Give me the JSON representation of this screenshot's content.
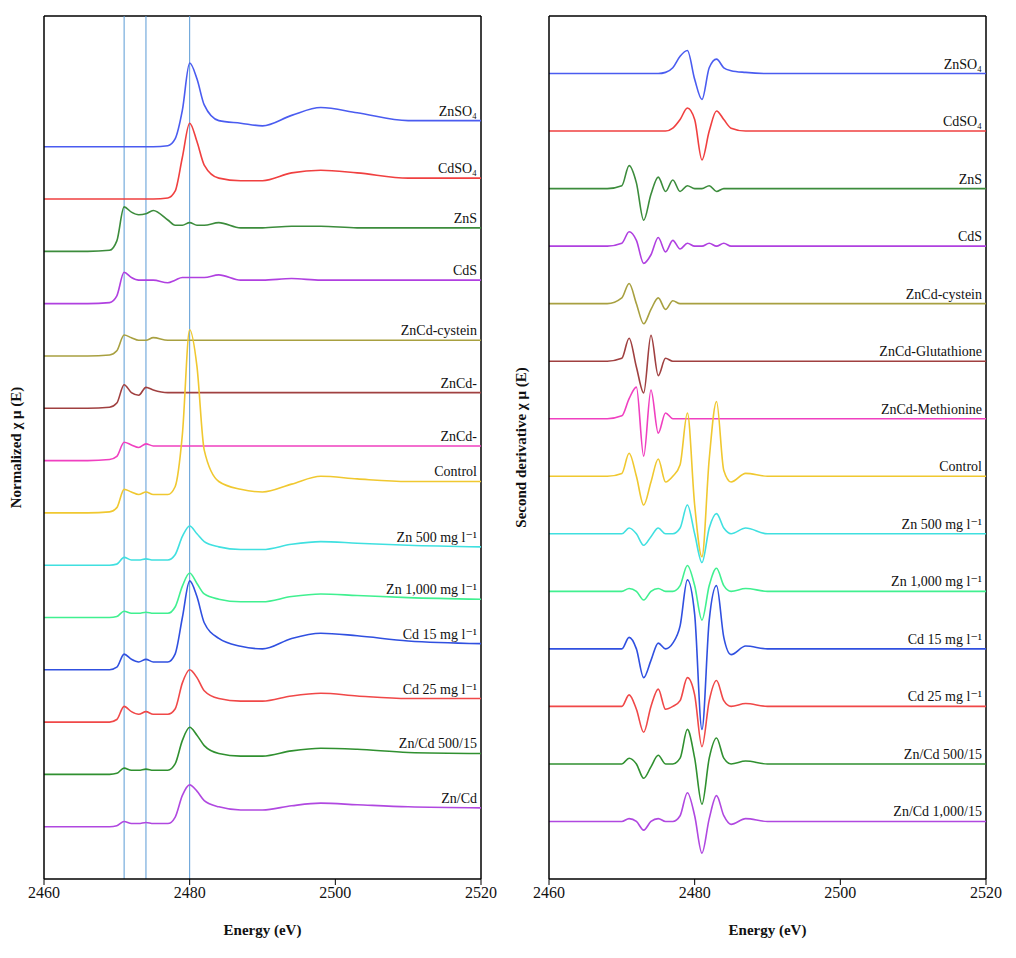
{
  "chart_data": [
    {
      "type": "line",
      "x_label": "Energy (eV)",
      "y_label": "Normalized χ μ (E)",
      "x": [
        2460,
        2466,
        2469,
        2470,
        2471,
        2472,
        2473,
        2474,
        2475,
        2477,
        2478,
        2479,
        2480,
        2481,
        2482,
        2484,
        2487,
        2490,
        2494,
        2498,
        2503,
        2510,
        2520
      ],
      "xlim": [
        2460,
        2520
      ],
      "xticks": [
        2460,
        2480,
        2500,
        2520
      ],
      "ylim": [
        0,
        16.5
      ],
      "tick_labels": "x",
      "grid": false,
      "vlines": [
        2471,
        2474,
        2480
      ],
      "series": [
        {
          "name": "ZnSO₄",
          "color": "#4a5cf0",
          "values": [
            14,
            14,
            14,
            14,
            14,
            14,
            14,
            14,
            14,
            14.02,
            14.15,
            14.7,
            15.6,
            15.3,
            14.8,
            14.5,
            14.45,
            14.4,
            14.6,
            14.75,
            14.65,
            14.5,
            14.5
          ]
        },
        {
          "name": "CdSO₄",
          "color": "#f04040",
          "values": [
            13,
            13,
            13,
            13,
            13,
            13,
            13,
            13,
            13,
            13.02,
            13.15,
            13.8,
            14.45,
            14.1,
            13.65,
            13.4,
            13.35,
            13.35,
            13.5,
            13.55,
            13.5,
            13.4,
            13.4
          ]
        },
        {
          "name": "ZnS",
          "color": "#3c8c3c",
          "values": [
            12,
            12,
            12.02,
            12.2,
            12.85,
            12.75,
            12.7,
            12.72,
            12.78,
            12.6,
            12.5,
            12.5,
            12.55,
            12.5,
            12.5,
            12.55,
            12.45,
            12.45,
            12.48,
            12.48,
            12.45,
            12.45,
            12.45
          ]
        },
        {
          "name": "CdS",
          "color": "#b040e0",
          "values": [
            11,
            11,
            11.02,
            11.15,
            11.6,
            11.5,
            11.45,
            11.45,
            11.45,
            11.4,
            11.45,
            11.5,
            11.5,
            11.5,
            11.5,
            11.55,
            11.45,
            11.45,
            11.48,
            11.45,
            11.45,
            11.45,
            11.45
          ]
        },
        {
          "name": "ZnCd-cystein",
          "color": "#a8a040",
          "values": [
            10,
            10,
            10.02,
            10.1,
            10.4,
            10.35,
            10.3,
            10.3,
            10.35,
            10.3,
            10.3,
            10.3,
            10.3,
            10.3,
            10.3,
            10.3,
            10.3,
            10.3,
            10.3,
            10.3,
            10.3,
            10.3,
            10.3
          ]
        },
        {
          "name": "ZnCd-",
          "color": "#a04040",
          "values": [
            9,
            9,
            9.02,
            9.1,
            9.45,
            9.3,
            9.25,
            9.4,
            9.35,
            9.3,
            9.3,
            9.3,
            9.3,
            9.3,
            9.3,
            9.3,
            9.3,
            9.3,
            9.3,
            9.3,
            9.3,
            9.3,
            9.3
          ]
        },
        {
          "name": "ZnCd-",
          "color": "#f040c0",
          "values": [
            8,
            8,
            8.02,
            8.08,
            8.35,
            8.3,
            8.25,
            8.32,
            8.28,
            8.28,
            8.28,
            8.28,
            8.28,
            8.28,
            8.28,
            8.28,
            8.28,
            8.28,
            8.28,
            8.28,
            8.28,
            8.28,
            8.28
          ]
        },
        {
          "name": "Control",
          "color": "#f0c830",
          "values": [
            7,
            7,
            7.02,
            7.1,
            7.45,
            7.4,
            7.35,
            7.4,
            7.35,
            7.35,
            7.5,
            8.5,
            10.5,
            9.8,
            8.2,
            7.6,
            7.45,
            7.4,
            7.55,
            7.7,
            7.65,
            7.6,
            7.6
          ]
        },
        {
          "name": "Zn 500 mg l⁻¹",
          "color": "#40e0e0",
          "values": [
            6,
            6,
            6,
            6.02,
            6.15,
            6.1,
            6.1,
            6.12,
            6.1,
            6.1,
            6.2,
            6.55,
            6.75,
            6.6,
            6.45,
            6.35,
            6.3,
            6.3,
            6.4,
            6.45,
            6.42,
            6.38,
            6.35
          ]
        },
        {
          "name": "Zn 1,000 mg l⁻¹",
          "color": "#40f090",
          "values": [
            5,
            5,
            5,
            5.02,
            5.12,
            5.08,
            5.08,
            5.1,
            5.08,
            5.08,
            5.2,
            5.6,
            5.85,
            5.65,
            5.45,
            5.35,
            5.3,
            5.3,
            5.4,
            5.45,
            5.42,
            5.38,
            5.35
          ]
        },
        {
          "name": "Cd 15 mg l⁻¹",
          "color": "#3050e0",
          "values": [
            4,
            4,
            4,
            4.05,
            4.3,
            4.2,
            4.15,
            4.2,
            4.15,
            4.15,
            4.3,
            5.0,
            5.7,
            5.4,
            4.9,
            4.6,
            4.45,
            4.4,
            4.6,
            4.7,
            4.65,
            4.55,
            4.5
          ]
        },
        {
          "name": "Cd 25 mg l⁻¹",
          "color": "#f04848",
          "values": [
            3,
            3,
            3,
            3.05,
            3.3,
            3.2,
            3.15,
            3.2,
            3.15,
            3.15,
            3.25,
            3.75,
            4.0,
            3.85,
            3.6,
            3.45,
            3.4,
            3.4,
            3.5,
            3.55,
            3.5,
            3.45,
            3.45
          ]
        },
        {
          "name": "Zn/Cd 500/15",
          "color": "#309030",
          "values": [
            2,
            2,
            2,
            2.02,
            2.12,
            2.08,
            2.08,
            2.1,
            2.08,
            2.08,
            2.2,
            2.65,
            2.9,
            2.75,
            2.55,
            2.4,
            2.35,
            2.35,
            2.45,
            2.5,
            2.48,
            2.42,
            2.4
          ]
        },
        {
          "name": "Zn/Cd",
          "color": "#b048e0",
          "values": [
            1,
            1,
            1,
            1.02,
            1.1,
            1.06,
            1.06,
            1.08,
            1.06,
            1.06,
            1.18,
            1.6,
            1.8,
            1.68,
            1.5,
            1.38,
            1.32,
            1.32,
            1.4,
            1.45,
            1.42,
            1.38,
            1.36
          ]
        }
      ]
    },
    {
      "type": "line",
      "x_label": "Energy (eV)",
      "y_label": "Second derivative χ μ (E)",
      "x": [
        2460,
        2468,
        2470,
        2471,
        2472,
        2473,
        2474,
        2475,
        2476,
        2477,
        2478,
        2479,
        2480,
        2481,
        2482,
        2483,
        2484,
        2485,
        2487,
        2490,
        2495,
        2505,
        2520
      ],
      "xlim": [
        2460,
        2520
      ],
      "xticks": [
        2460,
        2480,
        2500,
        2520
      ],
      "ylim": [
        0,
        15
      ],
      "tick_labels": "x",
      "grid": false,
      "series": [
        {
          "name": "ZnSO₄",
          "color": "#4a5cf0",
          "values": [
            14,
            14,
            14,
            14,
            14,
            14,
            14,
            14,
            14.02,
            14.1,
            14.3,
            14.4,
            13.9,
            13.55,
            14.1,
            14.25,
            14.1,
            14.05,
            14.02,
            14,
            14,
            14,
            14
          ]
        },
        {
          "name": "CdSO₄",
          "color": "#f04040",
          "values": [
            13,
            13,
            13,
            13,
            13,
            13,
            13,
            13,
            13,
            13.05,
            13.2,
            13.4,
            13.2,
            12.5,
            13.0,
            13.35,
            13.2,
            13.05,
            13.0,
            13,
            13,
            13,
            13
          ]
        },
        {
          "name": "ZnS",
          "color": "#3c8c3c",
          "values": [
            12,
            12,
            12.05,
            12.4,
            12.1,
            11.45,
            11.9,
            12.2,
            11.95,
            12.15,
            11.95,
            12.05,
            12.0,
            12.0,
            12.05,
            11.95,
            12,
            12,
            12,
            12,
            12,
            12,
            12
          ]
        },
        {
          "name": "CdS",
          "color": "#b040e0",
          "values": [
            11,
            11,
            11.05,
            11.25,
            11.1,
            10.7,
            10.85,
            11.15,
            10.9,
            11.1,
            10.95,
            11.05,
            11,
            11,
            11.05,
            11.0,
            11.05,
            11,
            11,
            11,
            11,
            11,
            11
          ]
        },
        {
          "name": "ZnCd-cystein",
          "color": "#a8a040",
          "values": [
            10,
            10,
            10.1,
            10.35,
            10.0,
            9.65,
            9.9,
            10.1,
            9.9,
            10.05,
            10,
            10,
            10,
            10,
            10,
            10,
            10,
            10,
            10,
            10,
            10,
            10,
            10
          ]
        },
        {
          "name": "ZnCd-Glutathione",
          "color": "#a04040",
          "values": [
            9,
            9,
            9.05,
            9.4,
            8.9,
            8.45,
            9.45,
            8.75,
            9.05,
            9,
            9,
            9,
            9,
            9,
            9,
            9,
            9,
            9,
            9,
            9,
            9,
            9,
            9
          ]
        },
        {
          "name": "ZnCd-Methionine",
          "color": "#f040c0",
          "values": [
            8,
            8,
            8.05,
            8.35,
            8.55,
            7.35,
            8.5,
            7.75,
            8.1,
            8,
            8,
            8,
            8,
            8,
            8,
            8,
            8,
            8,
            8,
            8,
            8,
            8,
            8
          ]
        },
        {
          "name": "Control",
          "color": "#f0c830",
          "values": [
            7,
            7,
            7.05,
            7.4,
            7.0,
            6.5,
            6.9,
            7.3,
            6.9,
            7.0,
            7.2,
            8.1,
            6.5,
            5.6,
            7.3,
            8.3,
            7.1,
            6.9,
            7.05,
            7,
            7,
            7,
            7
          ]
        },
        {
          "name": "Zn 500 mg l⁻¹",
          "color": "#40e0e0",
          "values": [
            6,
            6,
            6,
            6.1,
            6.0,
            5.8,
            5.95,
            6.1,
            6,
            6,
            6.1,
            6.5,
            6.0,
            5.5,
            6.1,
            6.35,
            6.1,
            6.0,
            6.1,
            6,
            6,
            6,
            6
          ]
        },
        {
          "name": "Zn 1,000 mg l⁻¹",
          "color": "#40f090",
          "values": [
            5,
            5,
            5,
            5.05,
            5,
            4.85,
            5,
            5.05,
            5,
            5,
            5.1,
            5.45,
            5.1,
            4.5,
            5.1,
            5.4,
            5.1,
            5,
            5.05,
            5,
            5,
            5,
            5
          ]
        },
        {
          "name": "Cd 15 mg l⁻¹",
          "color": "#3050e0",
          "values": [
            4,
            4,
            4,
            4.2,
            4.0,
            3.5,
            3.8,
            4.1,
            4,
            4.1,
            4.4,
            5.2,
            4.6,
            2.6,
            4.5,
            5.1,
            4.2,
            3.9,
            4.05,
            4,
            4,
            4,
            4
          ]
        },
        {
          "name": "Cd 25 mg l⁻¹",
          "color": "#f04848",
          "values": [
            3,
            3,
            3,
            3.2,
            2.95,
            2.55,
            3.0,
            3.3,
            2.95,
            3,
            3.1,
            3.5,
            3.2,
            2.3,
            3.1,
            3.45,
            3.1,
            3,
            3.05,
            3,
            3,
            3,
            3
          ]
        },
        {
          "name": "Zn/Cd 500/15",
          "color": "#309030",
          "values": [
            2,
            2,
            2,
            2.1,
            2,
            1.75,
            1.95,
            2.15,
            2,
            2,
            2.1,
            2.6,
            2.1,
            1.3,
            2.1,
            2.45,
            2.1,
            2,
            2.05,
            2,
            2,
            2,
            2
          ]
        },
        {
          "name": "Zn/Cd 1,000/15",
          "color": "#b048e0",
          "values": [
            1,
            1,
            1,
            1.05,
            1,
            0.85,
            1,
            1.05,
            1,
            1,
            1.1,
            1.5,
            1.1,
            0.45,
            1.05,
            1.45,
            1.1,
            0.95,
            1.05,
            1,
            1,
            1,
            1
          ]
        }
      ]
    }
  ]
}
